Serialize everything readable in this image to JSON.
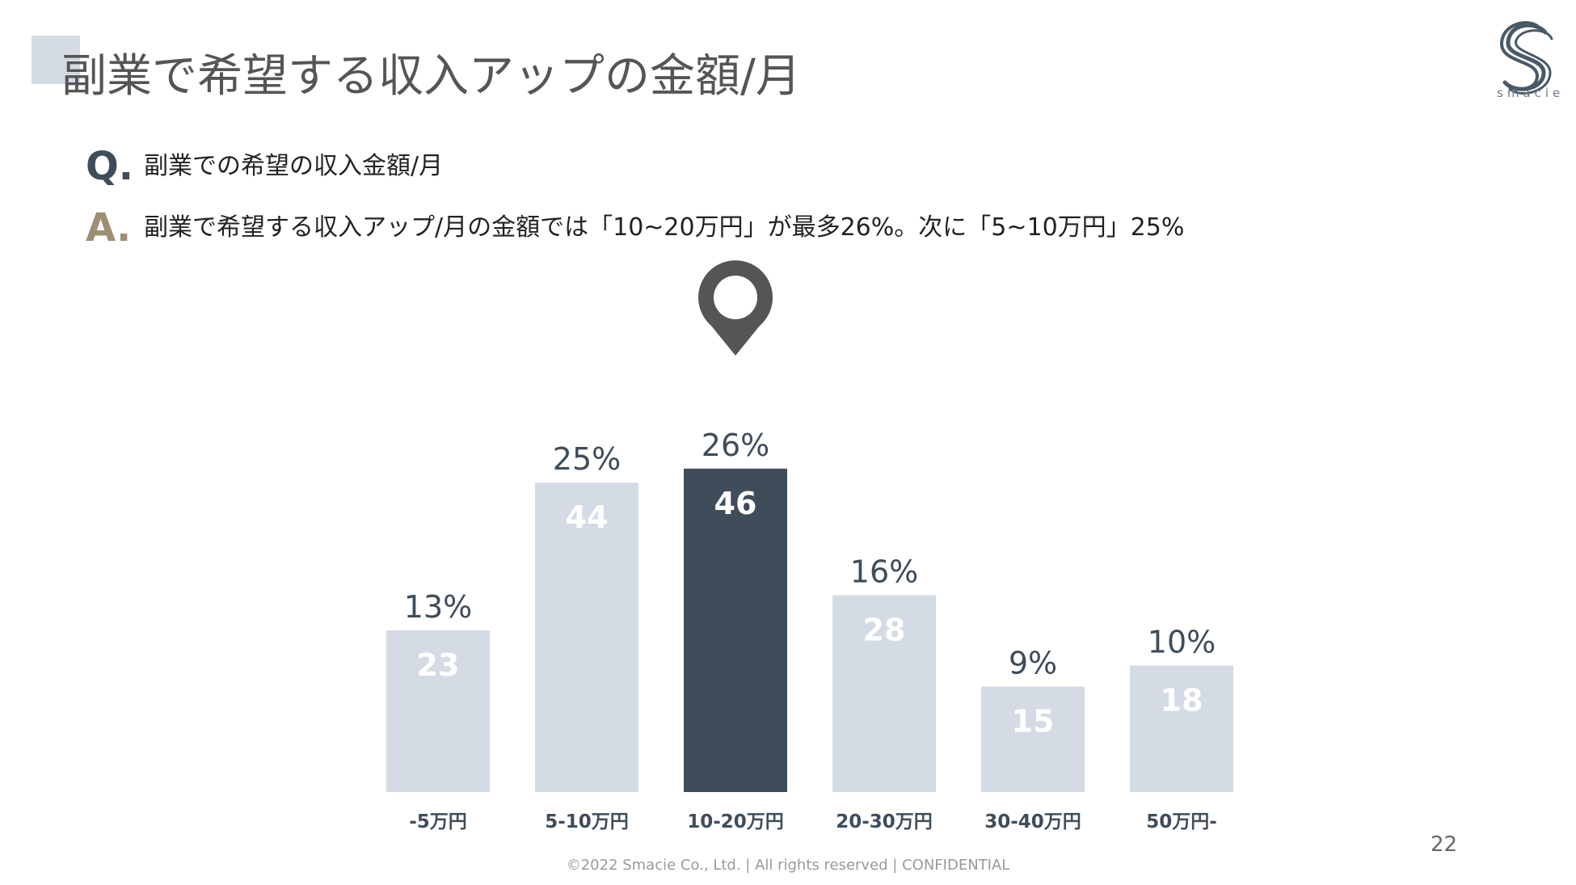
{
  "header": {
    "title": "副業で希望する収入アップの金額/月",
    "logo_text": "smacie"
  },
  "question": {
    "letter": "Q.",
    "text": "副業での希望の収入金額/月"
  },
  "answer": {
    "letter": "A.",
    "text": "副業で希望する収入アップ/月の金額では「10~20万円」が最多26%。次に「5~10万円」25%"
  },
  "chart_data": {
    "type": "bar",
    "title": "",
    "xlabel": "",
    "ylabel": "",
    "ylim": [
      0,
      50
    ],
    "grid": false,
    "legend": "none",
    "categories": [
      "-5万円",
      "5-10万円",
      "10-20万円",
      "20-30万円",
      "30-40万円",
      "50万円-"
    ],
    "values": [
      23,
      44,
      46,
      28,
      15,
      18
    ],
    "value_labels": [
      "23",
      "44",
      "46",
      "28",
      "15",
      "18"
    ],
    "percent_labels": [
      "13%",
      "25%",
      "26%",
      "16%",
      "9%",
      "10%"
    ],
    "highlight_index": 2,
    "colors": {
      "bar": "#d5dbe5",
      "highlight": "#3f4d5b",
      "percent_text": "#3f4d5b",
      "value_text": "#ffffff",
      "category_text": "#3f4d5b",
      "marker": "#555555"
    }
  },
  "footer": {
    "page_number": "22",
    "copyright": "©2022 Smacie Co., Ltd. | All rights reserved | CONFIDENTIAL"
  }
}
